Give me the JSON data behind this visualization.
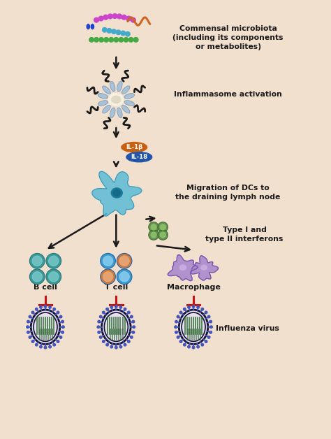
{
  "bg_color": "#f2e0cf",
  "labels": {
    "commensal": "Commensal microbiota\n(including its components\nor metabolites)",
    "inflammasome": "Inflammasome activation",
    "IL1b": "IL-1β",
    "IL18": "IL-18",
    "migration": "Migration of DCs to\nthe draining lymph node",
    "interferons": "Type I and\ntype II interferons",
    "bcell": "B cell",
    "tcell": "T cell",
    "macrophage": "Macrophage",
    "influenza": "Influenza virus"
  },
  "colors": {
    "arrow": "#1a1a1a",
    "inhibit_arrow": "#cc1111",
    "IL1b_fill": "#c86010",
    "IL18_fill": "#2255aa",
    "IL_text": "#ffffff",
    "dc_body": "#60bcd4",
    "dc_nucleus": "#1e7a9a",
    "bcell_outer": "#3a9898",
    "bcell_inner": "#7acaca",
    "tcell_blue_outer": "#3a9acc",
    "tcell_blue_inner": "#88ccee",
    "tcell_orange_outer": "#c87840",
    "tcell_orange_inner": "#e8aa78",
    "macrophage_fill": "#a888cc",
    "macrophage_edge": "#7755aa",
    "macrophage_nuc": "#c8aae0",
    "virus_bg": "#e8e0f0",
    "virus_ring1": "#111133",
    "virus_ring2": "#111133",
    "virus_spike": "#4455bb",
    "virus_rna": "#226622",
    "micro_purple": "#cc44cc",
    "micro_blue": "#2244cc",
    "micro_cyan": "#44aacc",
    "micro_green": "#44aa44",
    "micro_orange": "#cc6622",
    "infla_hub": "#e8ddc8",
    "infla_spoke_color": "#8ab0c0",
    "infla_arm_color": "#1a1a1a",
    "infla_subunit": "#a0c0d8",
    "interferon_green": "#558844",
    "interferon_inner": "#88bb66",
    "text_color": "#1a1a1a"
  },
  "layout": {
    "fig_w": 4.74,
    "fig_h": 6.28,
    "dpi": 100,
    "xlim": [
      0,
      10
    ],
    "ylim": [
      0,
      13.3
    ]
  }
}
